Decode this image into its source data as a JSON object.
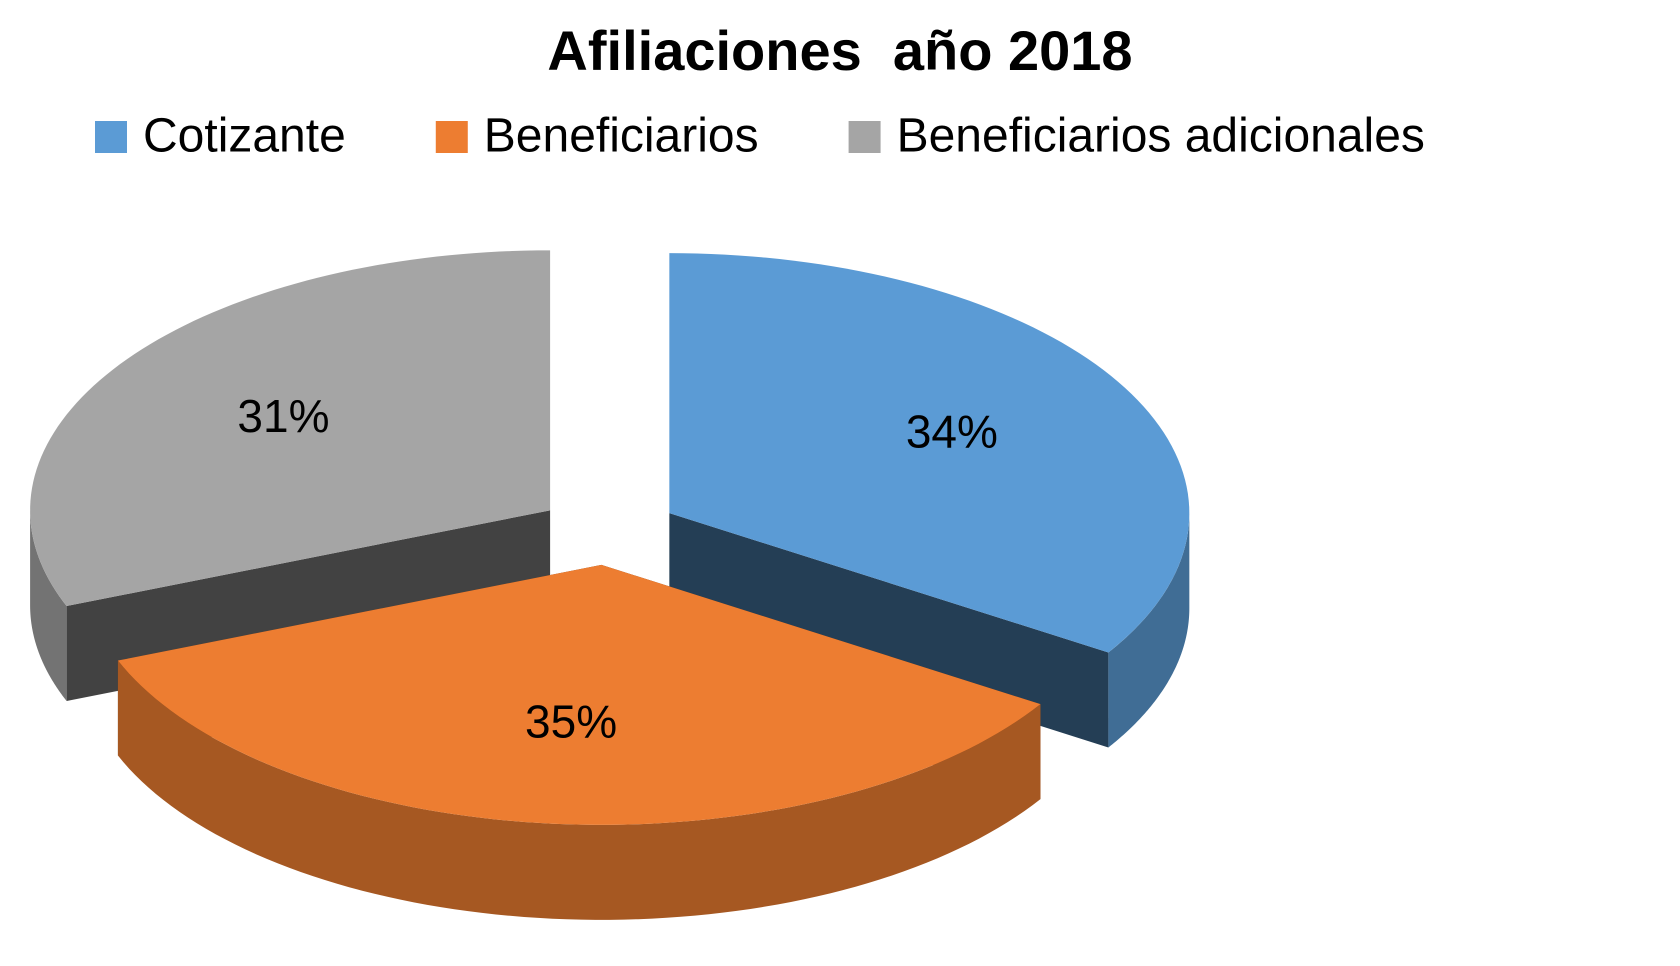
{
  "chart_data": {
    "type": "pie",
    "title": "Afiliaciones  año 2018",
    "categories": [
      "Cotizante",
      "Beneficiarios",
      "Beneficiarios adicionales"
    ],
    "values": [
      34,
      35,
      31
    ],
    "value_labels": [
      "34%",
      "35%",
      "31%"
    ],
    "colors": [
      "#5b9bd5",
      "#ed7d31",
      "#a5a5a5"
    ],
    "legend": "top"
  }
}
